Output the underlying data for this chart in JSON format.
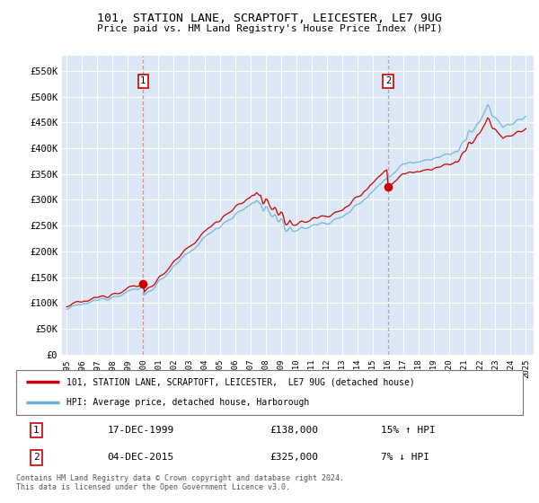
{
  "title1": "101, STATION LANE, SCRAPTOFT, LEICESTER, LE7 9UG",
  "title2": "Price paid vs. HM Land Registry's House Price Index (HPI)",
  "ylabel_ticks": [
    "£0",
    "£50K",
    "£100K",
    "£150K",
    "£200K",
    "£250K",
    "£300K",
    "£350K",
    "£400K",
    "£450K",
    "£500K",
    "£550K"
  ],
  "ylabel_values": [
    0,
    50000,
    100000,
    150000,
    200000,
    250000,
    300000,
    350000,
    400000,
    450000,
    500000,
    550000
  ],
  "ylim": [
    0,
    580000
  ],
  "x_start_year": 1995,
  "x_end_year": 2025,
  "sale1_date_num": 2000.0,
  "sale1_price": 138000,
  "sale2_date_num": 2016.0,
  "sale2_price": 325000,
  "sale1_label": "1",
  "sale2_label": "2",
  "legend_line1": "101, STATION LANE, SCRAPTOFT, LEICESTER,  LE7 9UG (detached house)",
  "legend_line2": "HPI: Average price, detached house, Harborough",
  "table_row1": [
    "1",
    "17-DEC-1999",
    "£138,000",
    "15% ↑ HPI"
  ],
  "table_row2": [
    "2",
    "04-DEC-2015",
    "£325,000",
    "7% ↓ HPI"
  ],
  "footnote": "Contains HM Land Registry data © Crown copyright and database right 2024.\nThis data is licensed under the Open Government Licence v3.0.",
  "hpi_color": "#6baed6",
  "price_color": "#cc0000",
  "sale1_vline_color": "#e08080",
  "sale2_vline_color": "#888888",
  "bg_color": "#dce8f5",
  "grid_color": "#ffffff"
}
